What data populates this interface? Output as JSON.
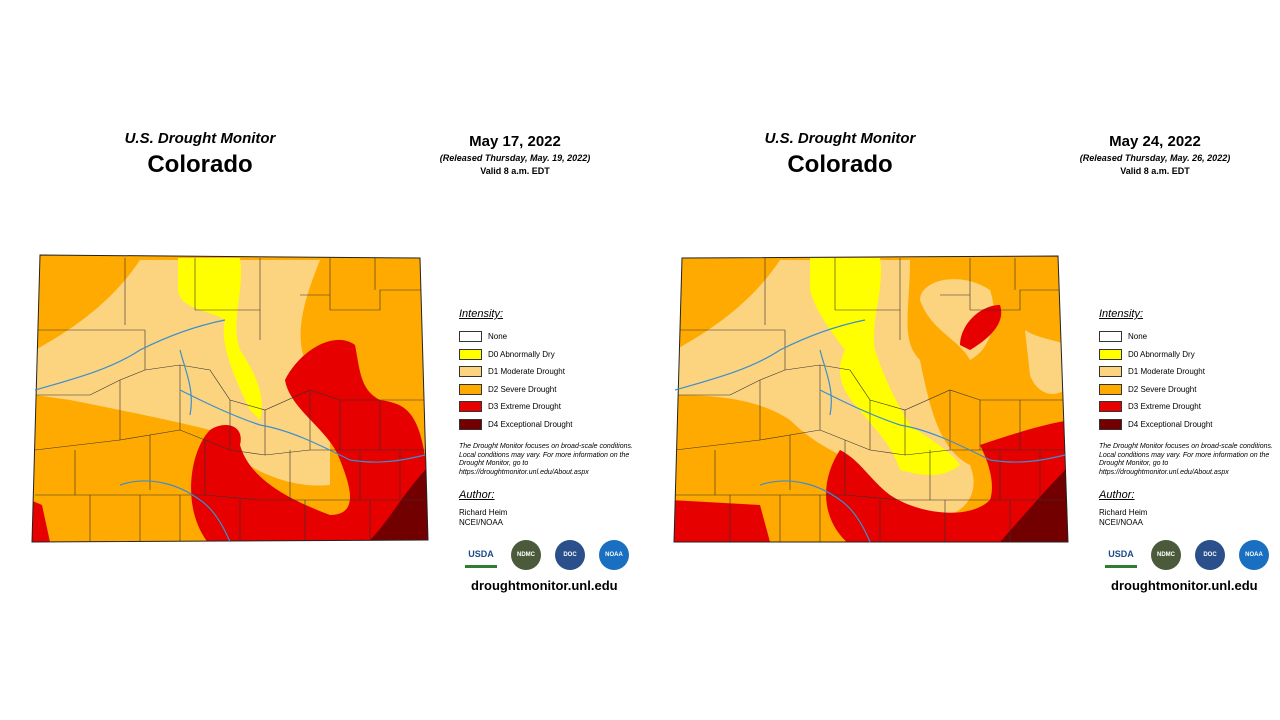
{
  "maps": [
    {
      "monitor_title": "U.S. Drought Monitor",
      "state": "Colorado",
      "date": "May 17, 2022",
      "released": "(Released Thursday, May. 19, 2022)",
      "valid": "Valid 8 a.m. EDT"
    },
    {
      "monitor_title": "U.S. Drought Monitor",
      "state": "Colorado",
      "date": "May 24, 2022",
      "released": "(Released Thursday, May. 26, 2022)",
      "valid": "Valid 8 a.m. EDT"
    }
  ],
  "legend": {
    "title": "Intensity:",
    "items": [
      {
        "label": "None",
        "color": "#ffffff"
      },
      {
        "label": "D0 Abnormally Dry",
        "color": "#ffff00"
      },
      {
        "label": "D1 Moderate Drought",
        "color": "#fcd37f"
      },
      {
        "label": "D2 Severe Drought",
        "color": "#ffaa00"
      },
      {
        "label": "D3 Extreme Drought",
        "color": "#e60000"
      },
      {
        "label": "D4 Exceptional Drought",
        "color": "#730000"
      }
    ],
    "note": "The Drought Monitor focuses on broad-scale conditions. Local conditions may vary. For more information on the Drought Monitor, go to https://droughtmonitor.unl.edu/About.aspx",
    "author_title": "Author:",
    "author_name": "Richard Heim",
    "author_org": "NCEI/NOAA"
  },
  "logos": [
    "USDA",
    "NDMC",
    "DOC",
    "NOAA"
  ],
  "website": "droughtmonitor.unl.edu"
}
